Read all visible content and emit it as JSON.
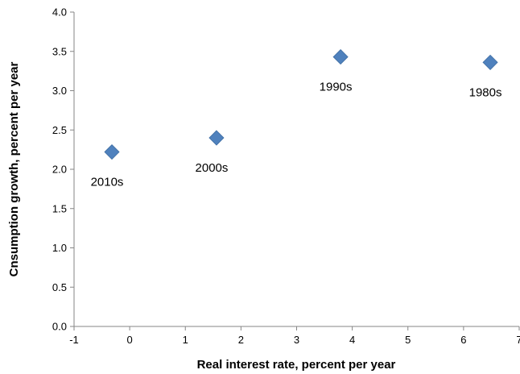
{
  "chart_data": {
    "type": "scatter",
    "title": "",
    "xlabel": "Real interest rate, percent per year",
    "ylabel": "Cnsumption growth, percent per year",
    "xlim": [
      -1,
      7
    ],
    "ylim": [
      0,
      4
    ],
    "xticks": [
      "-1",
      "0",
      "1",
      "2",
      "3",
      "4",
      "5",
      "6",
      "7"
    ],
    "yticks": [
      "0.0",
      "0.5",
      "1.0",
      "1.5",
      "2.0",
      "2.5",
      "3.0",
      "3.5",
      "4.0"
    ],
    "grid": false,
    "legend": "none",
    "marker": "diamond",
    "marker_color": "#4f81bd",
    "points": [
      {
        "label": "2010s",
        "x": -0.32,
        "y": 2.22
      },
      {
        "label": "2000s",
        "x": 1.56,
        "y": 2.4
      },
      {
        "label": "1990s",
        "x": 3.79,
        "y": 3.43
      },
      {
        "label": "1980s",
        "x": 6.48,
        "y": 3.36
      }
    ]
  }
}
